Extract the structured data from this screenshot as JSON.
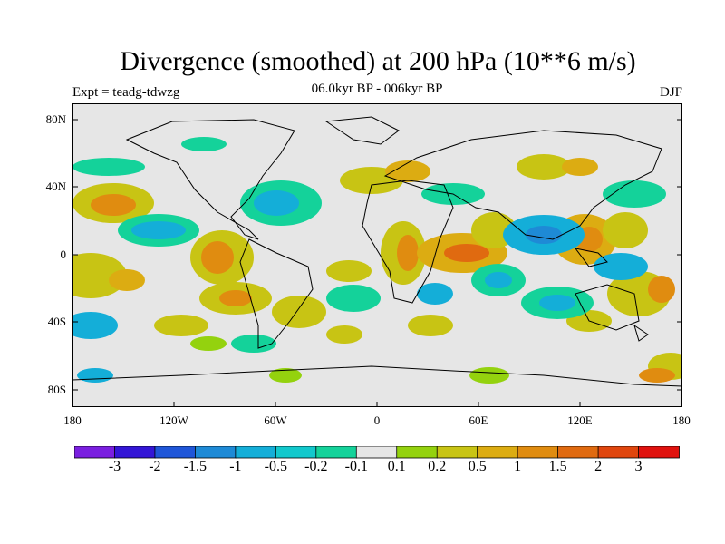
{
  "title": "Divergence (smoothed) at 200 hPa (10**6 m/s)",
  "subtitle": "06.0kyr BP - 006kyr BP",
  "experiment": "Expt = teadg-tdwzg",
  "season": "DJF",
  "lat_labels": [
    "80N",
    "40N",
    "0",
    "40S",
    "80S"
  ],
  "lon_labels": [
    "180",
    "120W",
    "60W",
    "0",
    "60E",
    "120E",
    "180"
  ],
  "colorbar": {
    "labels": [
      "-3",
      "-2",
      "-1.5",
      "-1",
      "-0.5",
      "-0.2",
      "-0.1",
      "0.1",
      "0.2",
      "0.5",
      "1",
      "1.5",
      "2",
      "3"
    ],
    "colors": [
      "#7a1fe0",
      "#3316d6",
      "#1f56d8",
      "#1e8ad6",
      "#14aed8",
      "#12c8cc",
      "#14d29a",
      "#e6e6e6",
      "#94d20e",
      "#c8c414",
      "#dcac12",
      "#e08c10",
      "#e06a10",
      "#e0460e",
      "#e0120e"
    ]
  },
  "map_region_colors": {
    "background": "#e6e6e6",
    "neg_strong": "#1e8ad6",
    "neg": "#14aed8",
    "neg_weak": "#14d29a",
    "pos_weak": "#94d20e",
    "pos": "#c8c414",
    "pos_mid": "#dcac12",
    "pos_strong": "#e08c10",
    "pos_max": "#e06a10"
  }
}
